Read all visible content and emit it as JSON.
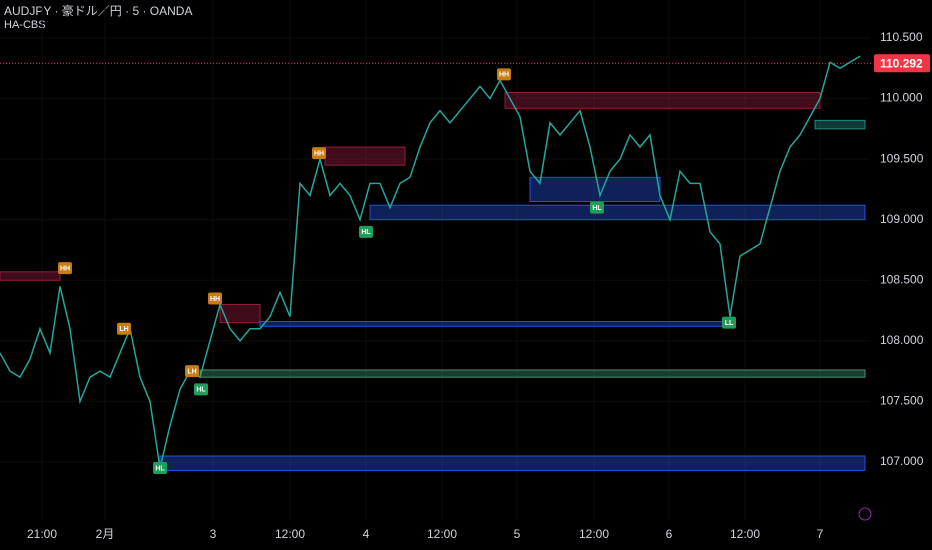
{
  "chart_data": {
    "type": "line",
    "title": "AUDJPY · 豪ドル／円 · 5 · OANDA",
    "subtitle": "HA-CBS",
    "color": "#26a69a",
    "x": [
      0,
      1,
      2,
      3,
      4,
      5,
      6,
      7,
      8,
      9,
      10,
      11,
      12,
      13,
      14,
      15,
      16,
      17,
      18,
      19,
      20,
      21,
      22,
      23,
      24,
      25,
      26,
      27,
      28,
      29,
      30,
      31,
      32,
      33,
      34,
      35,
      36,
      37,
      38,
      39,
      40,
      41,
      42,
      43,
      44,
      45,
      46,
      47,
      48,
      49,
      50,
      51,
      52,
      53,
      54,
      55,
      56,
      57,
      58,
      59,
      60,
      61,
      62,
      63,
      64,
      65,
      66,
      67,
      68,
      69,
      70,
      71,
      72,
      73,
      74,
      75,
      76,
      77,
      78,
      79,
      80,
      81,
      82,
      83,
      84,
      85,
      86
    ],
    "values": [
      107.9,
      107.75,
      107.7,
      107.85,
      108.1,
      107.9,
      108.45,
      108.1,
      107.5,
      107.7,
      107.75,
      107.7,
      107.9,
      108.1,
      107.7,
      107.5,
      106.95,
      107.3,
      107.6,
      107.75,
      107.7,
      108.0,
      108.3,
      108.1,
      108.0,
      108.1,
      108.1,
      108.2,
      108.4,
      108.2,
      109.3,
      109.2,
      109.5,
      109.2,
      109.3,
      109.2,
      109.0,
      109.3,
      109.3,
      109.1,
      109.3,
      109.35,
      109.6,
      109.8,
      109.9,
      109.8,
      109.9,
      110.0,
      110.1,
      110.0,
      110.15,
      110.0,
      109.85,
      109.4,
      109.3,
      109.8,
      109.7,
      109.8,
      109.9,
      109.6,
      109.2,
      109.4,
      109.5,
      109.7,
      109.6,
      109.7,
      109.2,
      109.0,
      109.4,
      109.3,
      109.3,
      108.9,
      108.8,
      108.2,
      108.7,
      108.75,
      108.8,
      109.1,
      109.4,
      109.6,
      109.7,
      109.85,
      110.0,
      110.3,
      110.25,
      110.3,
      110.35
    ],
    "xlim": [
      0,
      86
    ],
    "ylim": [
      106.6,
      110.75
    ],
    "xticks": [
      {
        "value": 4.2,
        "label": "21:00"
      },
      {
        "value": 10.5,
        "label": "2月"
      },
      {
        "value": 21.3,
        "label": "3"
      },
      {
        "value": 29,
        "label": "12:00"
      },
      {
        "value": 36.6,
        "label": "4"
      },
      {
        "value": 44.2,
        "label": "12:00"
      },
      {
        "value": 51.7,
        "label": "5"
      },
      {
        "value": 59.4,
        "label": "12:00"
      },
      {
        "value": 66.9,
        "label": "6"
      },
      {
        "value": 74.5,
        "label": "12:00"
      },
      {
        "value": 82,
        "label": "7"
      }
    ],
    "yticks": [
      {
        "value": 107,
        "label": "107.000"
      },
      {
        "value": 107.5,
        "label": "107.500"
      },
      {
        "value": 108,
        "label": "108.000"
      },
      {
        "value": 108.5,
        "label": "108.500"
      },
      {
        "value": 109,
        "label": "109.000"
      },
      {
        "value": 109.5,
        "label": "109.500"
      },
      {
        "value": 110,
        "label": "110.000"
      },
      {
        "value": 110.5,
        "label": "110.500"
      }
    ],
    "last_price": 110.292,
    "last_price_color": "#f23645",
    "zones": [
      {
        "x0": 0,
        "x1": 6,
        "low": 108.5,
        "high": 108.57,
        "color": "#b2224a"
      },
      {
        "x0": 22,
        "x1": 26,
        "low": 108.15,
        "high": 108.3,
        "color": "#b2224a"
      },
      {
        "x0": 32.5,
        "x1": 40.5,
        "low": 109.45,
        "high": 109.6,
        "color": "#b2224a"
      },
      {
        "x0": 50.5,
        "x1": 82,
        "low": 109.92,
        "high": 110.05,
        "color": "#b2224a"
      },
      {
        "x0": 16,
        "x1": 86.5,
        "low": 106.93,
        "high": 107.05,
        "color": "#2962ff"
      },
      {
        "x0": 20,
        "x1": 86.5,
        "low": 107.7,
        "high": 107.76,
        "color": "#4caf82"
      },
      {
        "x0": 26,
        "x1": 73,
        "low": 108.12,
        "high": 108.16,
        "color": "#2962ff"
      },
      {
        "x0": 37,
        "x1": 86.5,
        "low": 109.0,
        "high": 109.12,
        "color": "#2962ff"
      },
      {
        "x0": 53,
        "x1": 66,
        "low": 109.15,
        "high": 109.35,
        "color": "#2962ff"
      },
      {
        "x0": 81.5,
        "x1": 86.5,
        "low": 109.75,
        "high": 109.82,
        "color": "#26a69a"
      }
    ],
    "markers": [
      {
        "label": "HH",
        "x": 6.5,
        "price": 108.6,
        "color": "#c77c12"
      },
      {
        "label": "LH",
        "x": 12.4,
        "price": 108.1,
        "color": "#c77c12"
      },
      {
        "label": "HL",
        "x": 16,
        "price": 106.95,
        "color": "#1e9e5a"
      },
      {
        "label": "LH",
        "x": 19.2,
        "price": 107.75,
        "color": "#c77c12"
      },
      {
        "label": "HL",
        "x": 20.1,
        "price": 107.6,
        "color": "#1e9e5a"
      },
      {
        "label": "HH",
        "x": 21.5,
        "price": 108.35,
        "color": "#c77c12"
      },
      {
        "label": "HH",
        "x": 31.9,
        "price": 109.55,
        "color": "#c77c12"
      },
      {
        "label": "HL",
        "x": 36.6,
        "price": 108.9,
        "color": "#1e9e5a"
      },
      {
        "label": "HH",
        "x": 50.4,
        "price": 110.2,
        "color": "#c77c12"
      },
      {
        "label": "HL",
        "x": 59.7,
        "price": 109.1,
        "color": "#1e9e5a"
      },
      {
        "label": "LL",
        "x": 72.9,
        "price": 108.15,
        "color": "#1e9e5a"
      }
    ]
  }
}
